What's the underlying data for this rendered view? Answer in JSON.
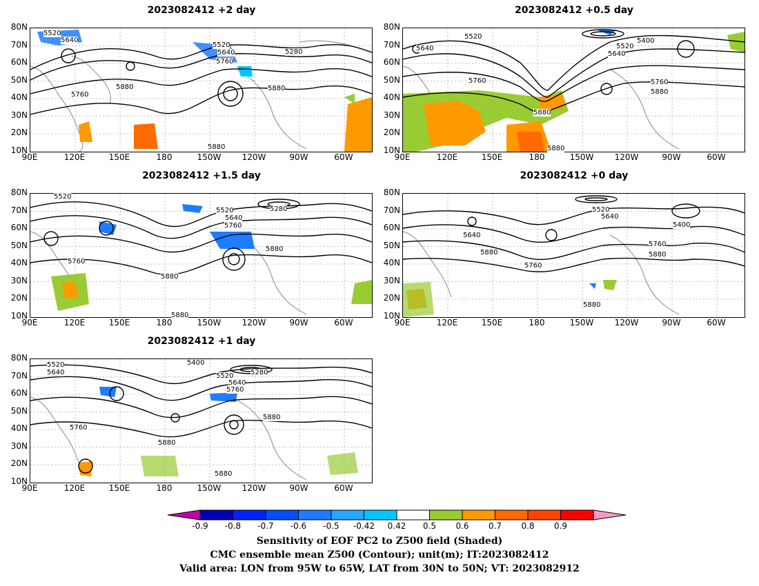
{
  "panels": [
    {
      "title": "2023082412 +2 day"
    },
    {
      "title": "2023082412 +0.5 day"
    },
    {
      "title": "2023082412 +1.5 day"
    },
    {
      "title": "2023082412 +0 day"
    },
    {
      "title": "2023082412 +1 day"
    }
  ],
  "axes": {
    "lat_labels": [
      "80N",
      "70N",
      "60N",
      "50N",
      "40N",
      "30N",
      "20N",
      "10N"
    ],
    "lon_labels": [
      "90E",
      "120E",
      "150E",
      "180",
      "150W",
      "120W",
      "90W",
      "60W"
    ]
  },
  "contour_labels": {
    "p0": [
      "5520",
      "5640",
      "5520",
      "5640",
      "5760",
      "5280",
      "5760",
      "5880",
      "5880",
      "5880"
    ],
    "p1": [
      "5520",
      "5640",
      "5400",
      "5520",
      "5640",
      "5760",
      "5880",
      "5760",
      "5880",
      "5880"
    ],
    "p2": [
      "5520",
      "5520",
      "5280",
      "5640",
      "5760",
      "5880",
      "5760",
      "5880",
      "5880"
    ],
    "p3": [
      "5520",
      "5640",
      "5400",
      "5640",
      "5880",
      "5760",
      "5760",
      "5880",
      "5880"
    ],
    "p4": [
      "5400",
      "5520",
      "5640",
      "5280",
      "5520",
      "5640",
      "5760",
      "5880",
      "5760",
      "5880",
      "5880"
    ]
  },
  "colorbar": {
    "ticks": [
      "-0.9",
      "-0.8",
      "-0.7",
      "-0.6",
      "-0.5",
      "-0.42",
      "0.42",
      "0.5",
      "0.6",
      "0.7",
      "0.8",
      "0.9"
    ],
    "colors": [
      "#c400a8",
      "#0000b4",
      "#0022ff",
      "#0050ff",
      "#1e7cff",
      "#27a8ff",
      "#00c8ff",
      "#ffffff",
      "#99cc33",
      "#ff9900",
      "#ff6a00",
      "#ff4400",
      "#ff0000",
      "#ff99cc"
    ]
  },
  "captions": {
    "line1": "Sensitivity of EOF PC2 to Z500 field (Shaded)",
    "line2": "CMC ensemble mean Z500 (Contour); unit(m); IT:2023082412",
    "line3": "Valid area: LON from 95W to 65W, LAT from 30N to 50N; VT: 2023082912"
  }
}
